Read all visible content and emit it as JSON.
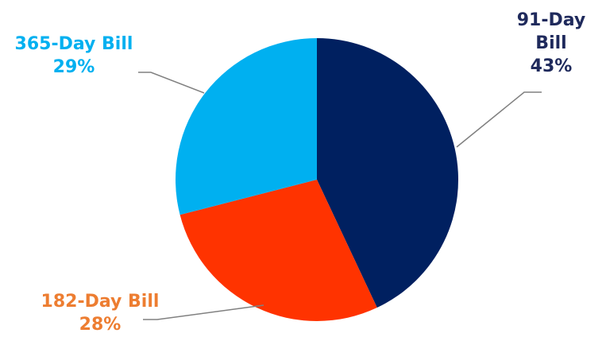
{
  "chart_data": {
    "type": "pie",
    "title": "",
    "slices": [
      {
        "name": "91-Day Bill",
        "label_lines": [
          "91-Day",
          "Bill"
        ],
        "percent_label": "43%",
        "value": 43,
        "color": "#002060",
        "label_color": "#1f2a5c"
      },
      {
        "name": "182-Day Bill",
        "label_lines": [
          "182-Day Bill"
        ],
        "percent_label": "28%",
        "value": 28,
        "color": "#ff3300",
        "label_color": "#ed7d31"
      },
      {
        "name": "365-Day Bill",
        "label_lines": [
          "365-Day Bill"
        ],
        "percent_label": "29%",
        "value": 29,
        "color": "#00b0f0",
        "label_color": "#00b0f0"
      }
    ],
    "start_angle_deg": 0,
    "direction": "clockwise",
    "leader_line_color": "#808080"
  }
}
